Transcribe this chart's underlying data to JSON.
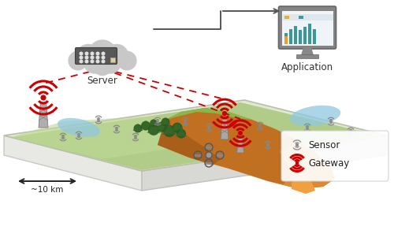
{
  "background_color": "#ffffff",
  "figure_width": 5.0,
  "figure_height": 2.92,
  "dpi": 100,
  "legend_sensor_label": "Sensor",
  "legend_gateway_label": "Gateway",
  "scale_text": "~10 km",
  "server_label": "Server",
  "application_label": "Application",
  "arrow_color": "#666666",
  "dashed_line_color": "#cc0000",
  "gateway_color": "#cc0000",
  "sensor_color": "#888888",
  "cloud_color": "#c8c8c8",
  "platform_edge_color": "#cccccc",
  "platform_face_color": "#f0f0ee",
  "platform_side_color": "#e0e0dc",
  "terrain_green_light": "#b8d890",
  "terrain_green": "#90c060",
  "terrain_brown_light": "#e8c070",
  "terrain_brown": "#d09040",
  "terrain_orange": "#e07820",
  "terrain_peak": "#cc6010",
  "water_color": "#90c8e0",
  "tree_dark": "#2a5a20",
  "tree_medium": "#3a7030",
  "sensor_icon_color": "#888888",
  "gateway_icon_color": "#cc0000"
}
